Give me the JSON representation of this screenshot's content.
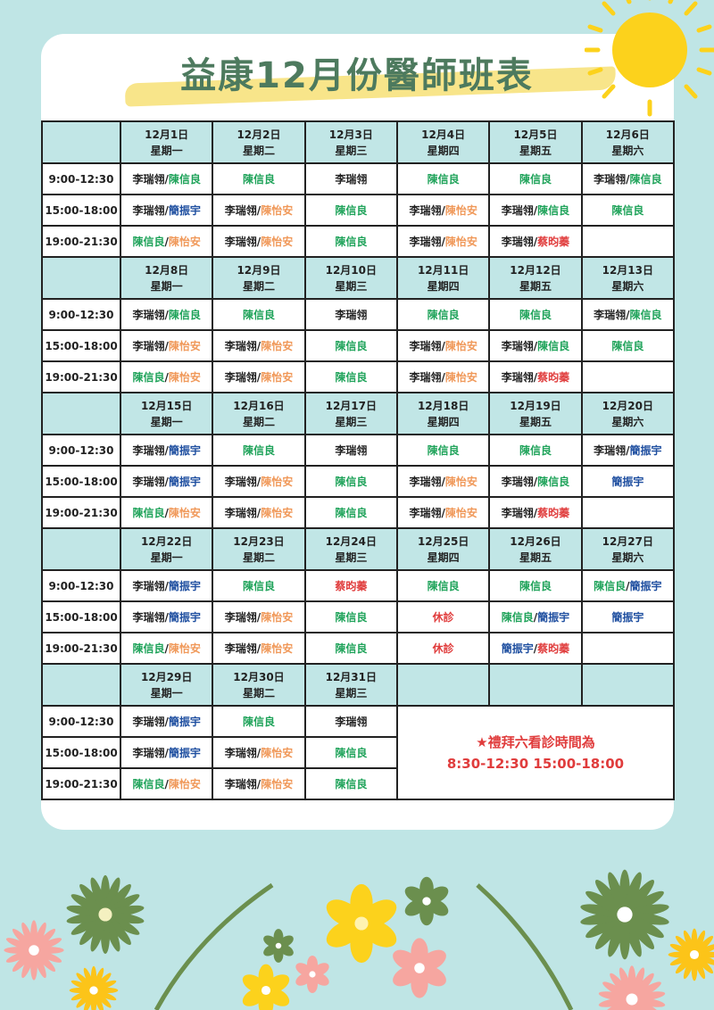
{
  "title": "益康12月份醫師班表",
  "colors": {
    "background": "#bfe5e5",
    "header_bg": "#c1e6e6",
    "title": "#4d7a5e",
    "doctors": {
      "李瑞翎": "#222222",
      "陳信良": "#1fa35a",
      "簡振宇": "#1f4fa0",
      "陳怡安": "#f0995a",
      "蔡昀蓁": "#e03c3c",
      "休診": "#e03c3c"
    }
  },
  "time_slots": [
    "9:00-12:30",
    "15:00-18:00",
    "19:00-21:30"
  ],
  "weeks": [
    {
      "dates": [
        [
          "12月1日",
          "星期一"
        ],
        [
          "12月2日",
          "星期二"
        ],
        [
          "12月3日",
          "星期三"
        ],
        [
          "12月4日",
          "星期四"
        ],
        [
          "12月5日",
          "星期五"
        ],
        [
          "12月6日",
          "星期六"
        ]
      ],
      "rows": [
        [
          [
            "李瑞翎",
            "陳信良"
          ],
          [
            "陳信良"
          ],
          [
            "李瑞翎"
          ],
          [
            "陳信良"
          ],
          [
            "陳信良"
          ],
          [
            "李瑞翎",
            "陳信良"
          ]
        ],
        [
          [
            "李瑞翎",
            "簡振宇"
          ],
          [
            "李瑞翎",
            "陳怡安"
          ],
          [
            "陳信良"
          ],
          [
            "李瑞翎",
            "陳怡安"
          ],
          [
            "李瑞翎",
            "陳信良"
          ],
          [
            "陳信良"
          ]
        ],
        [
          [
            "陳信良",
            "陳怡安"
          ],
          [
            "李瑞翎",
            "陳怡安"
          ],
          [
            "陳信良"
          ],
          [
            "李瑞翎",
            "陳怡安"
          ],
          [
            "李瑞翎",
            "蔡昀蓁"
          ],
          []
        ]
      ]
    },
    {
      "dates": [
        [
          "12月8日",
          "星期一"
        ],
        [
          "12月9日",
          "星期二"
        ],
        [
          "12月10日",
          "星期三"
        ],
        [
          "12月11日",
          "星期四"
        ],
        [
          "12月12日",
          "星期五"
        ],
        [
          "12月13日",
          "星期六"
        ]
      ],
      "rows": [
        [
          [
            "李瑞翎",
            "陳信良"
          ],
          [
            "陳信良"
          ],
          [
            "李瑞翎"
          ],
          [
            "陳信良"
          ],
          [
            "陳信良"
          ],
          [
            "李瑞翎",
            "陳信良"
          ]
        ],
        [
          [
            "李瑞翎",
            "陳怡安"
          ],
          [
            "李瑞翎",
            "陳怡安"
          ],
          [
            "陳信良"
          ],
          [
            "李瑞翎",
            "陳怡安"
          ],
          [
            "李瑞翎",
            "陳信良"
          ],
          [
            "陳信良"
          ]
        ],
        [
          [
            "陳信良",
            "陳怡安"
          ],
          [
            "李瑞翎",
            "陳怡安"
          ],
          [
            "陳信良"
          ],
          [
            "李瑞翎",
            "陳怡安"
          ],
          [
            "李瑞翎",
            "蔡昀蓁"
          ],
          []
        ]
      ]
    },
    {
      "dates": [
        [
          "12月15日",
          "星期一"
        ],
        [
          "12月16日",
          "星期二"
        ],
        [
          "12月17日",
          "星期三"
        ],
        [
          "12月18日",
          "星期四"
        ],
        [
          "12月19日",
          "星期五"
        ],
        [
          "12月20日",
          "星期六"
        ]
      ],
      "rows": [
        [
          [
            "李瑞翎",
            "簡振宇"
          ],
          [
            "陳信良"
          ],
          [
            "李瑞翎"
          ],
          [
            "陳信良"
          ],
          [
            "陳信良"
          ],
          [
            "李瑞翎",
            "簡振宇"
          ]
        ],
        [
          [
            "李瑞翎",
            "簡振宇"
          ],
          [
            "李瑞翎",
            "陳怡安"
          ],
          [
            "陳信良"
          ],
          [
            "李瑞翎",
            "陳怡安"
          ],
          [
            "李瑞翎",
            "陳信良"
          ],
          [
            "簡振宇"
          ]
        ],
        [
          [
            "陳信良",
            "陳怡安"
          ],
          [
            "李瑞翎",
            "陳怡安"
          ],
          [
            "陳信良"
          ],
          [
            "李瑞翎",
            "陳怡安"
          ],
          [
            "李瑞翎",
            "蔡昀蓁"
          ],
          []
        ]
      ]
    },
    {
      "dates": [
        [
          "12月22日",
          "星期一"
        ],
        [
          "12月23日",
          "星期二"
        ],
        [
          "12月24日",
          "星期三"
        ],
        [
          "12月25日",
          "星期四"
        ],
        [
          "12月26日",
          "星期五"
        ],
        [
          "12月27日",
          "星期六"
        ]
      ],
      "rows": [
        [
          [
            "李瑞翎",
            "簡振宇"
          ],
          [
            "陳信良"
          ],
          [
            "蔡昀蓁"
          ],
          [
            "陳信良"
          ],
          [
            "陳信良"
          ],
          [
            "陳信良",
            "簡振宇"
          ]
        ],
        [
          [
            "李瑞翎",
            "簡振宇"
          ],
          [
            "李瑞翎",
            "陳怡安"
          ],
          [
            "陳信良"
          ],
          [
            "休診"
          ],
          [
            "陳信良",
            "簡振宇"
          ],
          [
            "簡振宇"
          ]
        ],
        [
          [
            "陳信良",
            "陳怡安"
          ],
          [
            "李瑞翎",
            "陳怡安"
          ],
          [
            "陳信良"
          ],
          [
            "休診"
          ],
          [
            "簡振宇",
            "蔡昀蓁"
          ],
          []
        ]
      ]
    },
    {
      "dates": [
        [
          "12月29日",
          "星期一"
        ],
        [
          "12月30日",
          "星期二"
        ],
        [
          "12月31日",
          "星期三"
        ],
        null,
        null,
        null
      ],
      "rows": [
        [
          [
            "李瑞翎",
            "簡振宇"
          ],
          [
            "陳信良"
          ],
          [
            "李瑞翎"
          ]
        ],
        [
          [
            "李瑞翎",
            "簡振宇"
          ],
          [
            "李瑞翎",
            "陳怡安"
          ],
          [
            "陳信良"
          ]
        ],
        [
          [
            "陳信良",
            "陳怡安"
          ],
          [
            "李瑞翎",
            "陳怡安"
          ],
          [
            "陳信良"
          ]
        ]
      ]
    }
  ],
  "saturday_note": {
    "line1": "★禮拜六看診時間為",
    "line2": "8:30-12:30  15:00-18:00"
  }
}
